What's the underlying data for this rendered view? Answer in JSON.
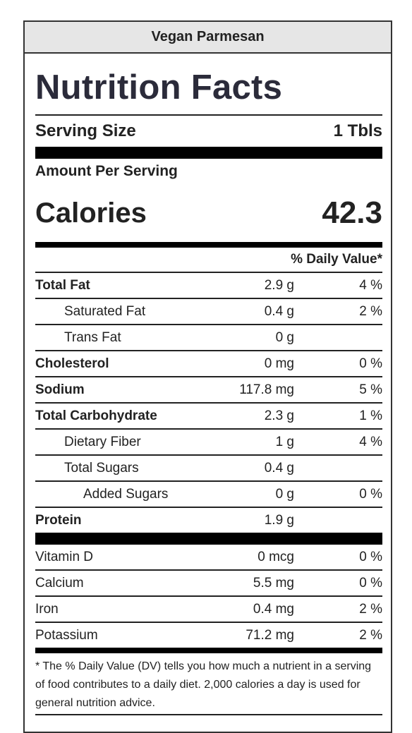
{
  "recipe_title": "Vegan Parmesan",
  "label": {
    "heading": "Nutrition Facts",
    "serving_size_label": "Serving Size",
    "serving_size_value": "1 Tbls",
    "amount_per_serving": "Amount Per Serving",
    "calories_label": "Calories",
    "calories_value": "42.3",
    "daily_value_header": "% Daily Value*"
  },
  "nutrients": [
    {
      "name": "Total Fat",
      "amount": "2.9 g",
      "dv": "4 %"
    },
    {
      "name": "Saturated Fat",
      "amount": "0.4 g",
      "dv": "2 %"
    },
    {
      "name": "Trans Fat",
      "amount": "0 g",
      "dv": ""
    },
    {
      "name": "Cholesterol",
      "amount": "0 mg",
      "dv": "0 %"
    },
    {
      "name": "Sodium",
      "amount": "117.8 mg",
      "dv": "5 %"
    },
    {
      "name": "Total Carbohydrate",
      "amount": "2.3 g",
      "dv": "1 %"
    },
    {
      "name": "Dietary Fiber",
      "amount": "1 g",
      "dv": "4 %"
    },
    {
      "name": "Total Sugars",
      "amount": "0.4 g",
      "dv": ""
    },
    {
      "name": "Added Sugars",
      "amount": "0 g",
      "dv": "0 %"
    },
    {
      "name": "Protein",
      "amount": "1.9 g",
      "dv": ""
    }
  ],
  "vitamins": [
    {
      "name": "Vitamin D",
      "amount": "0 mcg",
      "dv": "0 %"
    },
    {
      "name": "Calcium",
      "amount": "5.5 mg",
      "dv": "0 %"
    },
    {
      "name": "Iron",
      "amount": "0.4 mg",
      "dv": "2 %"
    },
    {
      "name": "Potassium",
      "amount": "71.2 mg",
      "dv": "2 %"
    }
  ],
  "footnote": "* The % Daily Value (DV) tells you how much a nutrient in a serving of food contributes to a daily diet. 2,000 calories a day is used for general nutrition advice."
}
